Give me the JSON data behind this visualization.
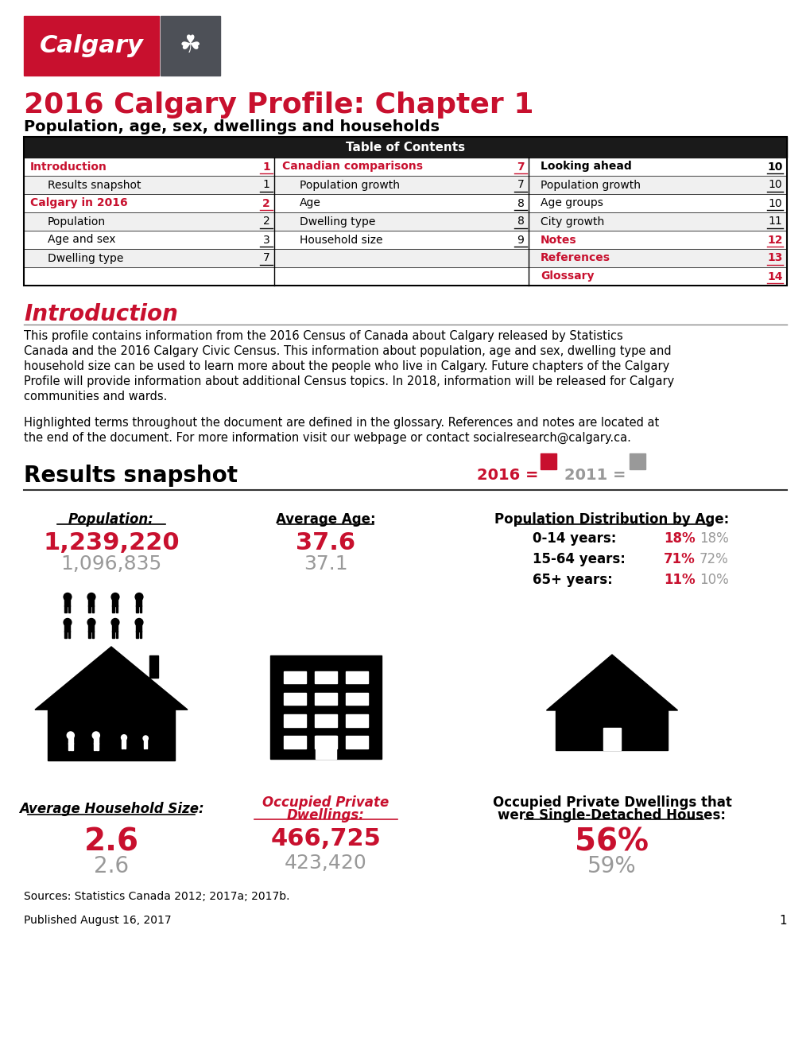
{
  "title_main": "2016 Calgary Profile: Chapter 1",
  "title_sub": "Population, age, sex, dwellings and households",
  "title_color": "#C8102E",
  "subtitle_color": "#000000",
  "bg_color": "#FFFFFF",
  "header_bg": "#1A1A1A",
  "header_text": "Table of Contents",
  "header_text_color": "#FFFFFF",
  "table_rows": [
    [
      "Introduction",
      "1",
      "Canadian comparisons",
      "7",
      "Looking ahead",
      "10"
    ],
    [
      "Results snapshot",
      "1",
      "Population growth",
      "7",
      "Population growth",
      "10"
    ],
    [
      "Calgary in 2016",
      "2",
      "Age",
      "8",
      "Age groups",
      "10"
    ],
    [
      "Population",
      "2",
      "Dwelling type",
      "8",
      "City growth",
      "11"
    ],
    [
      "Age and sex",
      "3",
      "Household size",
      "9",
      "Notes",
      "12"
    ],
    [
      "Dwelling type",
      "7",
      "",
      "",
      "References",
      "13"
    ],
    [
      "",
      "",
      "",
      "",
      "Glossary",
      "14"
    ]
  ],
  "intro_heading": "Introduction",
  "intro_heading_color": "#C8102E",
  "intro_text1": "This profile contains information from the 2016 Census of Canada about Calgary released by Statistics\nCanada and the 2016 Calgary Civic Census. This information about population, age and sex, dwelling type and\nhousehold size can be used to learn more about the people who live in Calgary. Future chapters of the Calgary\nProfile will provide information about additional Census topics. In 2018, information will be released for Calgary\ncommunities and wards.",
  "intro_text2": "Highlighted terms throughout the document are defined in the glossary. References and notes are located at\nthe end of the document. For more information visit our webpage or contact socialresearch@calgary.ca.",
  "snapshot_heading": "Results snapshot",
  "year2016_color": "#C8102E",
  "year2011_color": "#999999",
  "pop_label": "Population:",
  "pop_2016": "1,239,220",
  "pop_2011": "1,096,835",
  "age_label": "Average Age:",
  "age_2016": "37.6",
  "age_2011": "37.1",
  "dist_label": "Population Distribution by Age:",
  "dist_rows": [
    [
      "0-14 years:",
      "18%",
      "18%"
    ],
    [
      "15-64 years:",
      "71%",
      "72%"
    ],
    [
      "65+ years:",
      "11%",
      "10%"
    ]
  ],
  "hh_label": "Average Household Size:",
  "hh_2016": "2.6",
  "hh_2011": "2.6",
  "occ_label": "Occupied Private\nDwellings:",
  "occ_2016": "466,725",
  "occ_2011": "423,420",
  "sdh_label": "Occupied Private Dwellings that\nwere Single-Detached Houses:",
  "sdh_2016": "56%",
  "sdh_2011": "59%",
  "sources": "Sources: Statistics Canada 2012; 2017a; 2017b.",
  "published": "Published August 16, 2017",
  "page_num": "1"
}
